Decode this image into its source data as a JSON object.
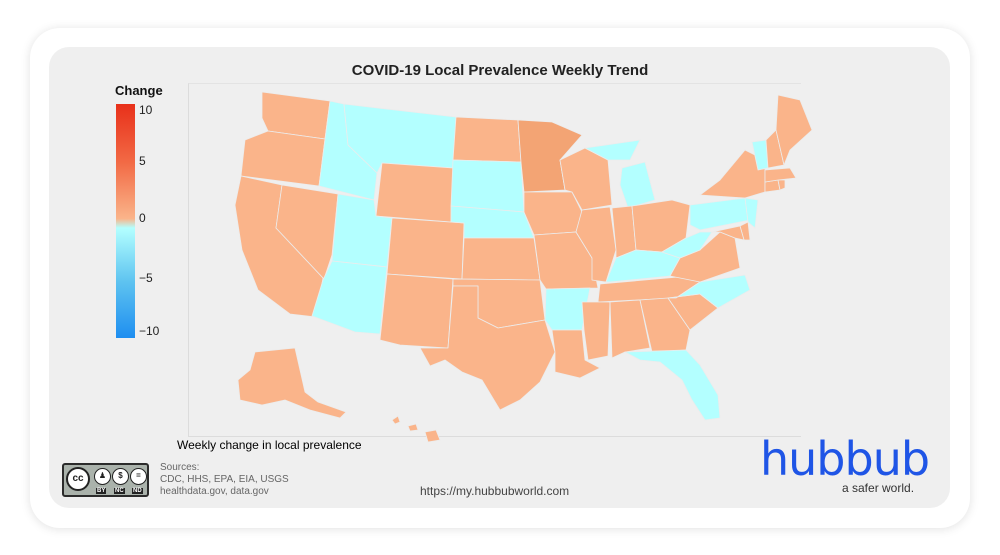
{
  "title": "COVID-19 Local Prevalence Weekly Trend",
  "legend": {
    "title": "Change",
    "ticks": [
      "10",
      "5",
      "0",
      "−5",
      "−10"
    ],
    "range": [
      -10,
      10
    ]
  },
  "colors": {
    "increase": "#fab48a",
    "increase_strong": "#f3a474",
    "decrease": "#b3ffff",
    "accent_brand": "#1f55e6"
  },
  "caption": "Weekly change in local prevalence",
  "license": {
    "symbol": "cc",
    "labels": [
      "BY",
      "NC",
      "ND"
    ]
  },
  "sources": {
    "label": "Sources:",
    "line1": "CDC, HHS, EPA, EIA, USGS",
    "line2": "healthdata.gov, data.gov"
  },
  "url": "https://my.hubbubworld.com",
  "brand": {
    "name": "hubbub",
    "tagline": "a safer world."
  },
  "chart_data": {
    "type": "choropleth",
    "states": [
      {
        "state": "WA",
        "trend": "increase"
      },
      {
        "state": "OR",
        "trend": "increase"
      },
      {
        "state": "CA",
        "trend": "increase"
      },
      {
        "state": "NV",
        "trend": "increase"
      },
      {
        "state": "ID",
        "trend": "decrease"
      },
      {
        "state": "MT",
        "trend": "decrease"
      },
      {
        "state": "WY",
        "trend": "increase"
      },
      {
        "state": "UT",
        "trend": "decrease"
      },
      {
        "state": "AZ",
        "trend": "decrease"
      },
      {
        "state": "CO",
        "trend": "increase"
      },
      {
        "state": "NM",
        "trend": "increase"
      },
      {
        "state": "ND",
        "trend": "increase"
      },
      {
        "state": "SD",
        "trend": "decrease"
      },
      {
        "state": "NE",
        "trend": "decrease"
      },
      {
        "state": "KS",
        "trend": "increase"
      },
      {
        "state": "OK",
        "trend": "increase"
      },
      {
        "state": "TX",
        "trend": "increase"
      },
      {
        "state": "MN",
        "trend": "increase"
      },
      {
        "state": "IA",
        "trend": "increase"
      },
      {
        "state": "MO",
        "trend": "increase"
      },
      {
        "state": "AR",
        "trend": "decrease"
      },
      {
        "state": "LA",
        "trend": "increase"
      },
      {
        "state": "WI",
        "trend": "increase"
      },
      {
        "state": "IL",
        "trend": "increase"
      },
      {
        "state": "MI",
        "trend": "decrease"
      },
      {
        "state": "IN",
        "trend": "increase"
      },
      {
        "state": "OH",
        "trend": "increase"
      },
      {
        "state": "KY",
        "trend": "decrease"
      },
      {
        "state": "TN",
        "trend": "increase"
      },
      {
        "state": "MS",
        "trend": "increase"
      },
      {
        "state": "AL",
        "trend": "increase"
      },
      {
        "state": "GA",
        "trend": "increase"
      },
      {
        "state": "FL",
        "trend": "decrease"
      },
      {
        "state": "SC",
        "trend": "increase"
      },
      {
        "state": "NC",
        "trend": "decrease"
      },
      {
        "state": "VA",
        "trend": "increase"
      },
      {
        "state": "WV",
        "trend": "decrease"
      },
      {
        "state": "PA",
        "trend": "decrease"
      },
      {
        "state": "NY",
        "trend": "increase"
      },
      {
        "state": "NJ",
        "trend": "decrease"
      },
      {
        "state": "DE",
        "trend": "increase"
      },
      {
        "state": "MD",
        "trend": "increase"
      },
      {
        "state": "CT",
        "trend": "increase"
      },
      {
        "state": "RI",
        "trend": "increase"
      },
      {
        "state": "MA",
        "trend": "increase"
      },
      {
        "state": "VT",
        "trend": "decrease"
      },
      {
        "state": "NH",
        "trend": "increase"
      },
      {
        "state": "ME",
        "trend": "increase"
      },
      {
        "state": "AK",
        "trend": "increase"
      },
      {
        "state": "HI",
        "trend": "increase"
      }
    ]
  }
}
